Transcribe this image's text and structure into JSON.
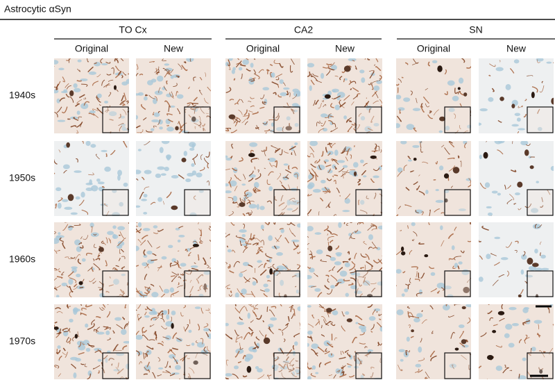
{
  "title": "Astrocytic αSyn",
  "groups": [
    {
      "label": "TO Cx",
      "columns": [
        "Original",
        "New"
      ]
    },
    {
      "label": "CA2",
      "columns": [
        "Original",
        "New"
      ]
    },
    {
      "label": "SN",
      "columns": [
        "Original",
        "New"
      ]
    }
  ],
  "rows": [
    "1940s",
    "1950s",
    "1960s",
    "1970s"
  ]
}
